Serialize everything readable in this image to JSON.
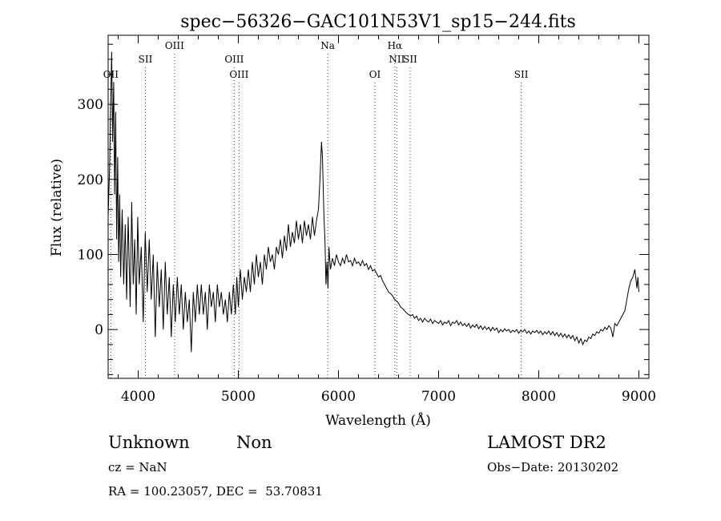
{
  "chart_data": {
    "type": "line",
    "title": "spec−56326−GAC101N53V1_sp15−244.fits",
    "xlabel": "Wavelength (Å)",
    "ylabel": "Flux (relative)",
    "xlim": [
      3700,
      9100
    ],
    "ylim": [
      -65,
      392
    ],
    "xticks": [
      4000,
      5000,
      6000,
      7000,
      8000,
      9000
    ],
    "yticks": [
      0,
      100,
      200,
      300
    ],
    "grid": false,
    "series": [
      {
        "name": "spectrum",
        "points": [
          [
            3700,
            150
          ],
          [
            3715,
            220
          ],
          [
            3725,
            300
          ],
          [
            3735,
            370
          ],
          [
            3745,
            250
          ],
          [
            3755,
            330
          ],
          [
            3765,
            180
          ],
          [
            3775,
            290
          ],
          [
            3785,
            120
          ],
          [
            3795,
            230
          ],
          [
            3805,
            90
          ],
          [
            3815,
            180
          ],
          [
            3825,
            70
          ],
          [
            3840,
            160
          ],
          [
            3855,
            60
          ],
          [
            3870,
            140
          ],
          [
            3885,
            40
          ],
          [
            3900,
            150
          ],
          [
            3920,
            30
          ],
          [
            3935,
            170
          ],
          [
            3950,
            60
          ],
          [
            3965,
            120
          ],
          [
            3980,
            20
          ],
          [
            3995,
            150
          ],
          [
            4010,
            60
          ],
          [
            4030,
            110
          ],
          [
            4050,
            10
          ],
          [
            4070,
            130
          ],
          [
            4090,
            50
          ],
          [
            4110,
            120
          ],
          [
            4130,
            40
          ],
          [
            4150,
            100
          ],
          [
            4170,
            -10
          ],
          [
            4190,
            90
          ],
          [
            4210,
            30
          ],
          [
            4230,
            80
          ],
          [
            4250,
            0
          ],
          [
            4270,
            90
          ],
          [
            4290,
            20
          ],
          [
            4310,
            70
          ],
          [
            4330,
            -10
          ],
          [
            4350,
            60
          ],
          [
            4370,
            10
          ],
          [
            4390,
            70
          ],
          [
            4410,
            20
          ],
          [
            4430,
            60
          ],
          [
            4450,
            0
          ],
          [
            4470,
            50
          ],
          [
            4490,
            10
          ],
          [
            4510,
            40
          ],
          [
            4530,
            -30
          ],
          [
            4550,
            50
          ],
          [
            4570,
            10
          ],
          [
            4590,
            60
          ],
          [
            4610,
            20
          ],
          [
            4630,
            60
          ],
          [
            4650,
            20
          ],
          [
            4670,
            50
          ],
          [
            4690,
            0
          ],
          [
            4710,
            60
          ],
          [
            4730,
            30
          ],
          [
            4750,
            50
          ],
          [
            4770,
            10
          ],
          [
            4790,
            60
          ],
          [
            4810,
            30
          ],
          [
            4830,
            50
          ],
          [
            4850,
            20
          ],
          [
            4870,
            40
          ],
          [
            4890,
            10
          ],
          [
            4910,
            50
          ],
          [
            4930,
            20
          ],
          [
            4950,
            60
          ],
          [
            4970,
            20
          ],
          [
            4985,
            70
          ],
          [
            5000,
            30
          ],
          [
            5020,
            80
          ],
          [
            5040,
            40
          ],
          [
            5060,
            70
          ],
          [
            5080,
            50
          ],
          [
            5100,
            80
          ],
          [
            5120,
            50
          ],
          [
            5140,
            90
          ],
          [
            5160,
            60
          ],
          [
            5180,
            100
          ],
          [
            5200,
            70
          ],
          [
            5220,
            90
          ],
          [
            5240,
            60
          ],
          [
            5260,
            100
          ],
          [
            5280,
            80
          ],
          [
            5300,
            110
          ],
          [
            5320,
            90
          ],
          [
            5340,
            100
          ],
          [
            5360,
            80
          ],
          [
            5380,
            110
          ],
          [
            5400,
            100
          ],
          [
            5420,
            120
          ],
          [
            5440,
            95
          ],
          [
            5460,
            125
          ],
          [
            5480,
            105
          ],
          [
            5500,
            140
          ],
          [
            5520,
            110
          ],
          [
            5540,
            130
          ],
          [
            5560,
            115
          ],
          [
            5580,
            145
          ],
          [
            5600,
            120
          ],
          [
            5620,
            140
          ],
          [
            5640,
            115
          ],
          [
            5660,
            145
          ],
          [
            5680,
            125
          ],
          [
            5700,
            140
          ],
          [
            5720,
            120
          ],
          [
            5740,
            150
          ],
          [
            5760,
            125
          ],
          [
            5780,
            145
          ],
          [
            5800,
            160
          ],
          [
            5815,
            200
          ],
          [
            5830,
            250
          ],
          [
            5840,
            230
          ],
          [
            5855,
            150
          ],
          [
            5865,
            120
          ],
          [
            5875,
            60
          ],
          [
            5885,
            90
          ],
          [
            5895,
            55
          ],
          [
            5905,
            110
          ],
          [
            5920,
            80
          ],
          [
            5940,
            95
          ],
          [
            5960,
            85
          ],
          [
            5980,
            100
          ],
          [
            6000,
            90
          ],
          [
            6020,
            85
          ],
          [
            6040,
            95
          ],
          [
            6060,
            88
          ],
          [
            6080,
            100
          ],
          [
            6100,
            90
          ],
          [
            6120,
            92
          ],
          [
            6140,
            85
          ],
          [
            6160,
            95
          ],
          [
            6180,
            88
          ],
          [
            6200,
            90
          ],
          [
            6220,
            85
          ],
          [
            6240,
            92
          ],
          [
            6260,
            85
          ],
          [
            6280,
            88
          ],
          [
            6300,
            80
          ],
          [
            6320,
            85
          ],
          [
            6340,
            78
          ],
          [
            6360,
            80
          ],
          [
            6380,
            75
          ],
          [
            6400,
            70
          ],
          [
            6420,
            72
          ],
          [
            6440,
            65
          ],
          [
            6460,
            60
          ],
          [
            6480,
            55
          ],
          [
            6500,
            50
          ],
          [
            6520,
            48
          ],
          [
            6540,
            45
          ],
          [
            6560,
            40
          ],
          [
            6580,
            38
          ],
          [
            6600,
            35
          ],
          [
            6620,
            30
          ],
          [
            6640,
            28
          ],
          [
            6660,
            25
          ],
          [
            6680,
            22
          ],
          [
            6700,
            20
          ],
          [
            6720,
            18
          ],
          [
            6740,
            20
          ],
          [
            6760,
            15
          ],
          [
            6780,
            18
          ],
          [
            6800,
            12
          ],
          [
            6820,
            15
          ],
          [
            6840,
            10
          ],
          [
            6860,
            15
          ],
          [
            6880,
            12
          ],
          [
            6900,
            10
          ],
          [
            6920,
            14
          ],
          [
            6940,
            8
          ],
          [
            6960,
            12
          ],
          [
            6980,
            10
          ],
          [
            7000,
            8
          ],
          [
            7020,
            12
          ],
          [
            7040,
            6
          ],
          [
            7060,
            10
          ],
          [
            7080,
            8
          ],
          [
            7100,
            12
          ],
          [
            7120,
            5
          ],
          [
            7140,
            10
          ],
          [
            7160,
            8
          ],
          [
            7180,
            12
          ],
          [
            7200,
            6
          ],
          [
            7220,
            10
          ],
          [
            7240,
            5
          ],
          [
            7260,
            8
          ],
          [
            7280,
            4
          ],
          [
            7300,
            8
          ],
          [
            7320,
            2
          ],
          [
            7340,
            6
          ],
          [
            7360,
            3
          ],
          [
            7380,
            7
          ],
          [
            7400,
            1
          ],
          [
            7420,
            5
          ],
          [
            7440,
            0
          ],
          [
            7460,
            4
          ],
          [
            7480,
            0
          ],
          [
            7500,
            3
          ],
          [
            7520,
            -2
          ],
          [
            7540,
            3
          ],
          [
            7560,
            -1
          ],
          [
            7580,
            2
          ],
          [
            7600,
            -4
          ],
          [
            7620,
            0
          ],
          [
            7640,
            -3
          ],
          [
            7660,
            1
          ],
          [
            7680,
            -2
          ],
          [
            7700,
            0
          ],
          [
            7720,
            -4
          ],
          [
            7740,
            -1
          ],
          [
            7760,
            -3
          ],
          [
            7780,
            0
          ],
          [
            7800,
            -5
          ],
          [
            7820,
            -1
          ],
          [
            7840,
            -3
          ],
          [
            7860,
            0
          ],
          [
            7880,
            -5
          ],
          [
            7900,
            -2
          ],
          [
            7920,
            -6
          ],
          [
            7940,
            -2
          ],
          [
            7960,
            -4
          ],
          [
            7980,
            -1
          ],
          [
            8000,
            -5
          ],
          [
            8020,
            -2
          ],
          [
            8040,
            -7
          ],
          [
            8060,
            -3
          ],
          [
            8080,
            -6
          ],
          [
            8100,
            -2
          ],
          [
            8120,
            -7
          ],
          [
            8140,
            -3
          ],
          [
            8160,
            -8
          ],
          [
            8180,
            -4
          ],
          [
            8200,
            -9
          ],
          [
            8220,
            -5
          ],
          [
            8240,
            -10
          ],
          [
            8260,
            -6
          ],
          [
            8280,
            -11
          ],
          [
            8300,
            -7
          ],
          [
            8320,
            -12
          ],
          [
            8340,
            -8
          ],
          [
            8360,
            -15
          ],
          [
            8380,
            -10
          ],
          [
            8400,
            -18
          ],
          [
            8420,
            -12
          ],
          [
            8440,
            -20
          ],
          [
            8460,
            -14
          ],
          [
            8480,
            -16
          ],
          [
            8500,
            -10
          ],
          [
            8520,
            -12
          ],
          [
            8540,
            -6
          ],
          [
            8560,
            -8
          ],
          [
            8580,
            -3
          ],
          [
            8600,
            -5
          ],
          [
            8620,
            0
          ],
          [
            8640,
            -2
          ],
          [
            8660,
            3
          ],
          [
            8680,
            0
          ],
          [
            8700,
            5
          ],
          [
            8720,
            2
          ],
          [
            8740,
            -10
          ],
          [
            8760,
            8
          ],
          [
            8780,
            5
          ],
          [
            8800,
            10
          ],
          [
            8820,
            15
          ],
          [
            8840,
            20
          ],
          [
            8860,
            25
          ],
          [
            8880,
            40
          ],
          [
            8900,
            55
          ],
          [
            8920,
            65
          ],
          [
            8940,
            70
          ],
          [
            8960,
            80
          ],
          [
            8980,
            55
          ],
          [
            8990,
            70
          ],
          [
            9000,
            50
          ]
        ]
      }
    ],
    "lines": [
      {
        "label": "OII",
        "x": 3727,
        "row": 2
      },
      {
        "label": "SII",
        "x": 4072,
        "row": 1
      },
      {
        "label": "OIII",
        "x": 4363,
        "row": 0
      },
      {
        "label": "OIII",
        "x": 4959,
        "row": 1
      },
      {
        "label": "OIII",
        "x": 5007,
        "row": 2
      },
      {
        "label": "Na",
        "x": 5893,
        "row": 0
      },
      {
        "label": "OI",
        "x": 6364,
        "row": 2
      },
      {
        "label": "Hα",
        "x": 6563,
        "row": 0
      },
      {
        "label": "NII",
        "x": 6583,
        "row": 1
      },
      {
        "label": "SII",
        "x": 6716,
        "row": 1
      },
      {
        "label": "SII",
        "x": 7825,
        "row": 2
      }
    ]
  },
  "info": {
    "class_label": "Unknown",
    "subclass_label": "Non",
    "survey": "LAMOST DR2",
    "cz_text": "cz = NaN",
    "obs_date_text": "Obs−Date: 20130202",
    "coords_text": "RA = 100.23057, DEC =  53.70831"
  }
}
